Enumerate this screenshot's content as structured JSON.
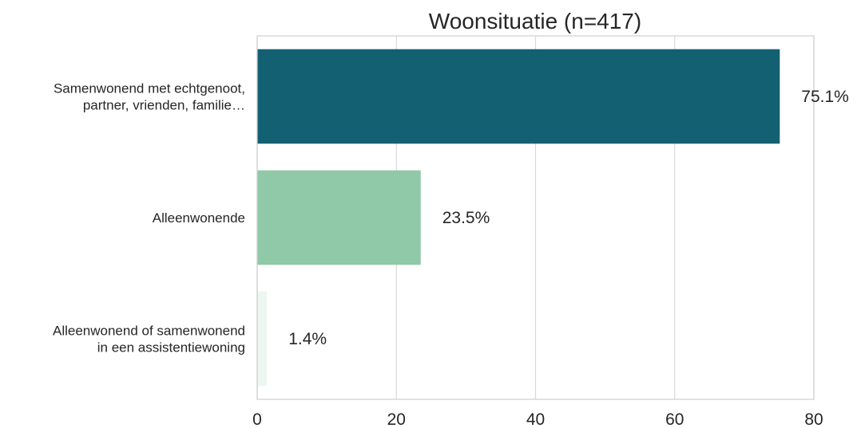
{
  "chart_data": {
    "type": "bar",
    "orientation": "horizontal",
    "title": "Woonsituatie (n=417)",
    "xlabel": "",
    "ylabel": "",
    "categories": [
      [
        "Samenwonend met echtgenoot,",
        "partner, vrienden, familie…"
      ],
      [
        "Alleenwonende"
      ],
      [
        "Alleenwonend of samenwonend",
        "in een assistentiewoning"
      ]
    ],
    "values": [
      75.1,
      23.5,
      1.4
    ],
    "value_labels": [
      "75.1%",
      "23.5%",
      "1.4%"
    ],
    "colors": [
      "#136072",
      "#8fc9a8",
      "#edf7f1"
    ],
    "xlim": [
      0,
      80
    ],
    "xticks": [
      0,
      20,
      40,
      60,
      80
    ],
    "xtick_labels": [
      "0",
      "20",
      "40",
      "60",
      "80"
    ],
    "grid": "vertical",
    "legend": "none"
  }
}
